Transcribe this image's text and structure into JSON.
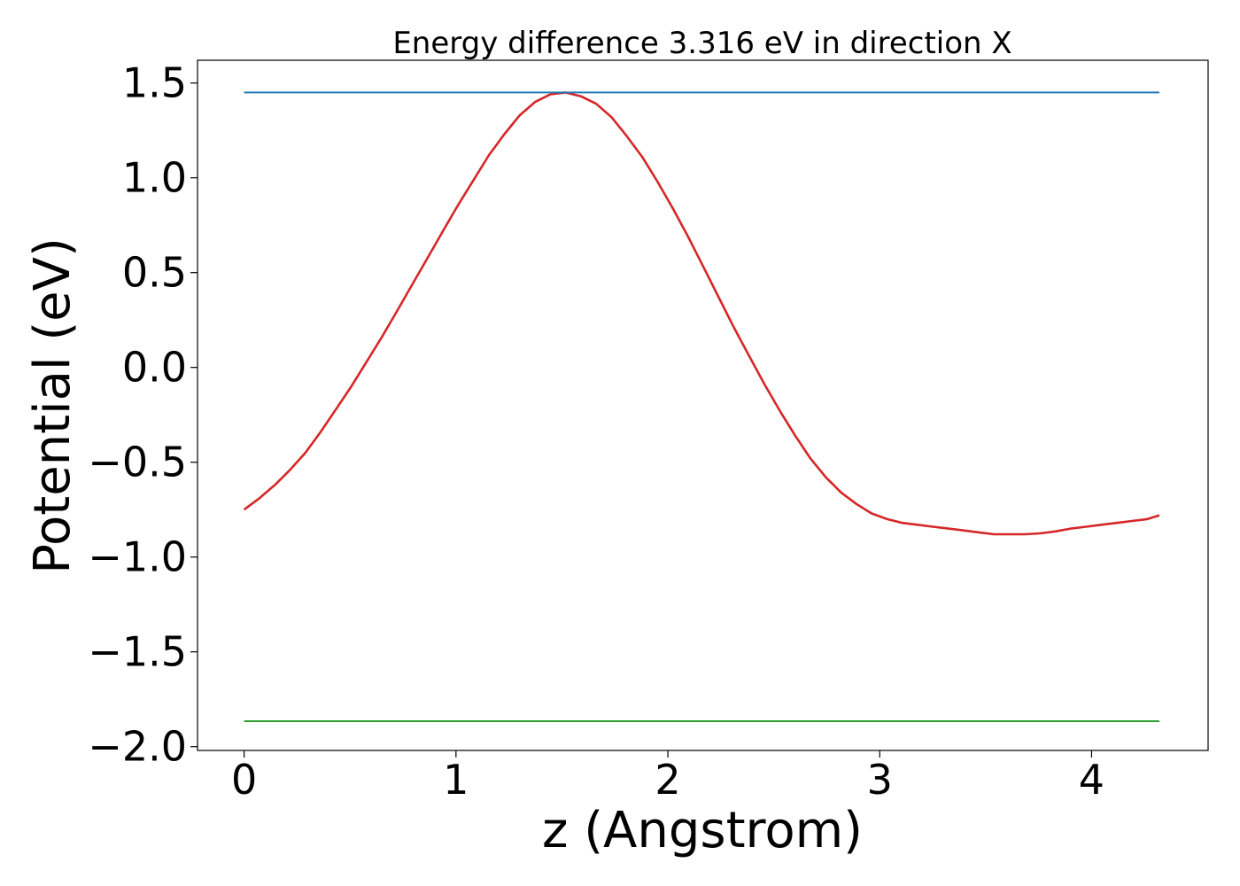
{
  "chart_data": {
    "type": "line",
    "title": "Energy difference 3.316 eV in direction X",
    "xlabel": "z (Angstrom)",
    "ylabel": "Potential (eV)",
    "xlim": [
      -0.22,
      4.55
    ],
    "ylim": [
      -2.02,
      1.62
    ],
    "grid": false,
    "xticks": [
      0,
      1,
      2,
      3,
      4
    ],
    "xtick_labels": [
      "0",
      "1",
      "2",
      "3",
      "4"
    ],
    "yticks": [
      1.5,
      1.0,
      0.5,
      0.0,
      -0.5,
      -1.0,
      -1.5,
      -2.0
    ],
    "ytick_labels": [
      "1.5",
      "1.0",
      "0.5",
      "0.0",
      "−0.5",
      "−1.0",
      "−1.5",
      "−2.0"
    ],
    "series": [
      {
        "color": "#d62728",
        "x": [
          0.0,
          0.072,
          0.145,
          0.217,
          0.289,
          0.361,
          0.434,
          0.506,
          0.578,
          0.65,
          0.723,
          0.795,
          0.867,
          0.939,
          1.012,
          1.084,
          1.156,
          1.228,
          1.301,
          1.373,
          1.445,
          1.517,
          1.59,
          1.662,
          1.734,
          1.806,
          1.879,
          1.951,
          2.023,
          2.095,
          2.168,
          2.24,
          2.312,
          2.384,
          2.457,
          2.529,
          2.601,
          2.673,
          2.746,
          2.818,
          2.89,
          2.962,
          3.035,
          3.107,
          3.179,
          3.251,
          3.324,
          3.396,
          3.468,
          3.54,
          3.613,
          3.685,
          3.757,
          3.829,
          3.902,
          3.974,
          4.046,
          4.118,
          4.191,
          4.263,
          4.32
        ],
        "y": [
          -0.75,
          -0.69,
          -0.62,
          -0.54,
          -0.45,
          -0.34,
          -0.22,
          -0.1,
          0.03,
          0.16,
          0.3,
          0.44,
          0.58,
          0.72,
          0.86,
          0.99,
          1.12,
          1.23,
          1.33,
          1.4,
          1.44,
          1.45,
          1.43,
          1.39,
          1.32,
          1.22,
          1.11,
          0.98,
          0.84,
          0.69,
          0.53,
          0.37,
          0.21,
          0.06,
          -0.09,
          -0.23,
          -0.36,
          -0.48,
          -0.58,
          -0.66,
          -0.72,
          -0.77,
          -0.8,
          -0.82,
          -0.83,
          -0.84,
          -0.85,
          -0.86,
          -0.87,
          -0.88,
          -0.88,
          -0.88,
          -0.875,
          -0.865,
          -0.85,
          -0.84,
          -0.83,
          -0.82,
          -0.81,
          -0.8,
          -0.78
        ]
      },
      {
        "color": "#1f77b4",
        "x": [
          0.0,
          4.32
        ],
        "y": [
          1.45,
          1.45
        ]
      },
      {
        "color": "#2ca02c",
        "x": [
          0.0,
          4.32
        ],
        "y": [
          -1.866,
          -1.866
        ]
      }
    ]
  }
}
